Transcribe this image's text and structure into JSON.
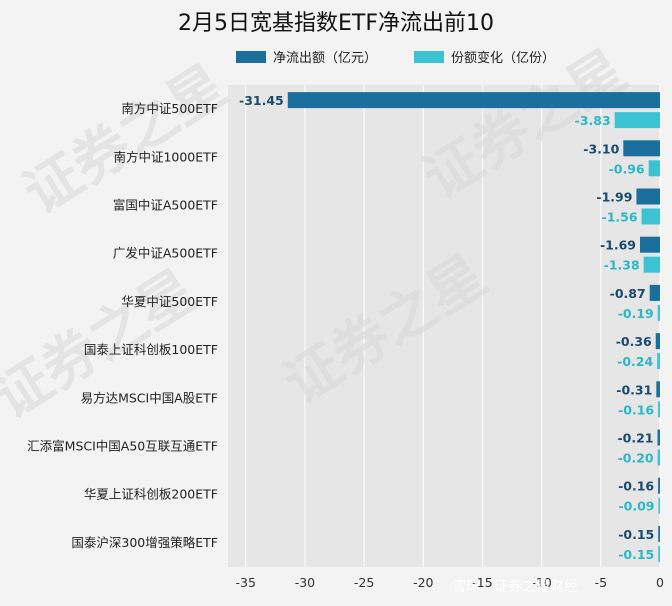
{
  "chart_data": {
    "type": "bar",
    "orientation": "horizontal",
    "title": "2月5日宽基指数ETF净流出前10",
    "categories": [
      "南方中证500ETF",
      "南方中证1000ETF",
      "富国中证A500ETF",
      "广发中证A500ETF",
      "华夏中证500ETF",
      "国泰上证科创板100ETF",
      "易方达MSCI中国A股ETF",
      "汇添富MSCI中国A50互联互通ETF",
      "华夏上证科创板200ETF",
      "国泰沪深300增强策略ETF"
    ],
    "series": [
      {
        "name": "净流出额（亿元）",
        "color": "#1a6f9c",
        "values": [
          -31.45,
          -3.1,
          -1.99,
          -1.69,
          -0.87,
          -0.36,
          -0.31,
          -0.21,
          -0.16,
          -0.15
        ],
        "labels": [
          "-31.45",
          "-3.10",
          "-1.99",
          "-1.69",
          "-0.87",
          "-0.36",
          "-0.31",
          "-0.21",
          "-0.16",
          "-0.15"
        ]
      },
      {
        "name": "份额变化（亿份）",
        "color": "#3cc3d3",
        "values": [
          -3.83,
          -0.96,
          -1.56,
          -1.38,
          -0.19,
          -0.24,
          -0.16,
          -0.2,
          -0.09,
          -0.15
        ],
        "labels": [
          "-3.83",
          "-0.96",
          "-1.56",
          "-1.38",
          "-0.19",
          "-0.24",
          "-0.16",
          "-0.20",
          "-0.09",
          "-0.15"
        ]
      }
    ],
    "x_ticks": [
      "-35",
      "-30",
      "-25",
      "-20",
      "-15",
      "-10",
      "-5",
      "0"
    ],
    "xlim": [
      -36.5,
      0
    ],
    "grid": true,
    "legend_position": "top"
  },
  "watermark": {
    "text": "证券之星",
    "footer": "雪球：证券之星财经"
  }
}
